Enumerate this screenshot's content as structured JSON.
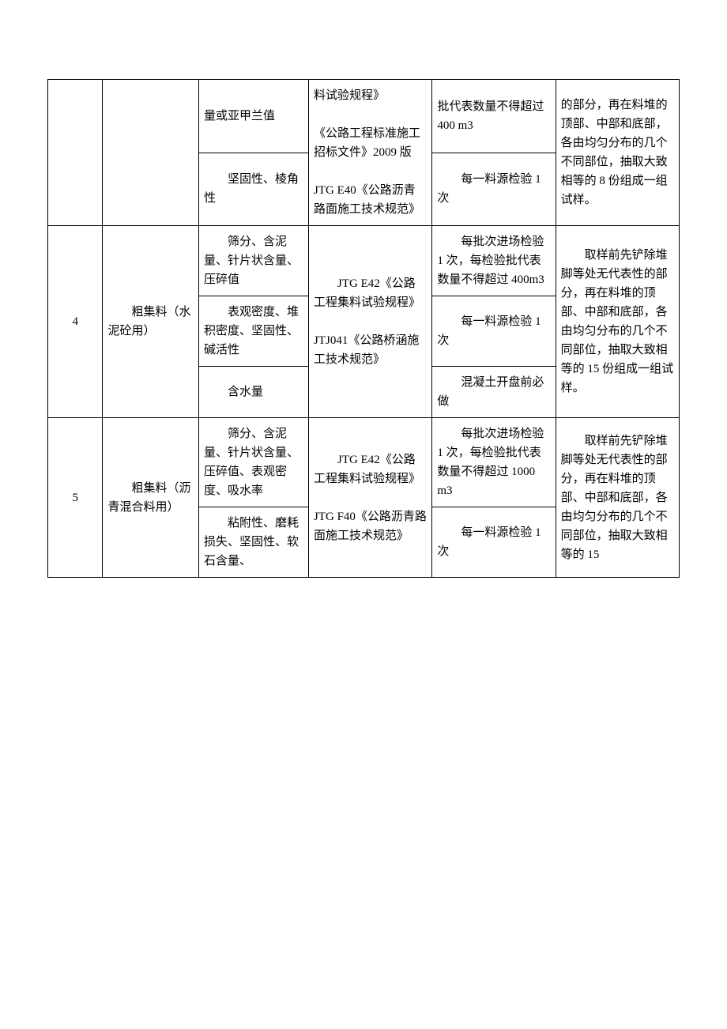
{
  "rows": [
    {
      "num": "",
      "material": "",
      "params": [
        {
          "text": "量或亚甲兰值",
          "freq": "批代表数量不得超过 400 m3"
        },
        {
          "text": "坚固性、棱角性",
          "freq": "每一料源检验 1 次"
        }
      ],
      "standard": "料试验规程》\n\n《公路工程标准施工招标文件》2009 版\n\nJTG E40《公路沥青路面施工技术规范》",
      "method": "的部分，再在料堆的顶部、中部和底部，各由均匀分布的几个不同部位，抽取大致相等的 8 份组成一组试样。"
    },
    {
      "num": "4",
      "material": "粗集料（水泥砼用）",
      "params": [
        {
          "text": "筛分、含泥量、针片状含量、压碎值",
          "freq": "每批次进场检验 1 次，每检验批代表数量不得超过 400m3"
        },
        {
          "text": "表观密度、堆积密度、坚固性、碱活性",
          "freq": "每一料源检验 1 次"
        },
        {
          "text": "含水量",
          "freq": "混凝土开盘前必做"
        }
      ],
      "standard": "JTG E42《公路工程集料试验规程》\n\nJTJ041《公路桥涵施工技术规范》",
      "method": "取样前先铲除堆脚等处无代表性的部分，再在料堆的顶部、中部和底部，各由均匀分布的几个不同部位，抽取大致相等的 15 份组成一组试样。"
    },
    {
      "num": "5",
      "material": "粗集料（沥青混合料用）",
      "params": [
        {
          "text": "筛分、含泥量、针片状含量、压碎值、表观密度、吸水率",
          "freq": "每批次进场检验 1 次，每检验批代表数量不得超过 1000 m3"
        },
        {
          "text": "粘附性、磨耗损失、坚固性、软石含量、",
          "freq": "每一料源检验 1 次"
        }
      ],
      "standard": "JTG E42《公路工程集料试验规程》\n\nJTG F40《公路沥青路面施工技术规范》",
      "method": "取样前先铲除堆脚等处无代表性的部分，再在料堆的顶部、中部和底部，各由均匀分布的几个不同部位，抽取大致相等的 15"
    }
  ]
}
